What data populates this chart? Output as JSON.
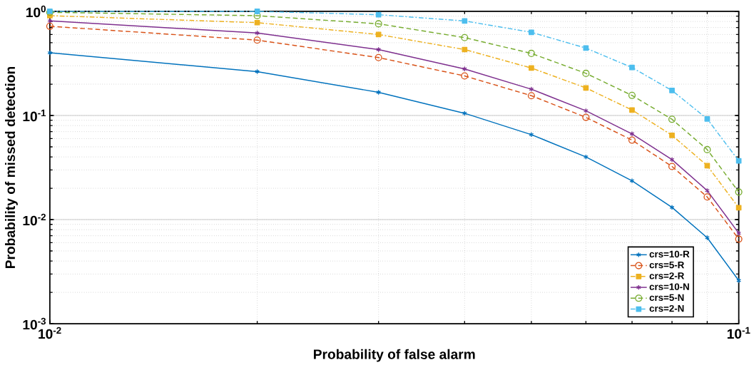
{
  "chart_data": {
    "type": "line",
    "xlabel": "Probability of false alarm",
    "ylabel": "Probability of missed detection",
    "log": "xy",
    "grid": true,
    "legend": "bottom right",
    "x": [
      0.01,
      0.02,
      0.03,
      0.04,
      0.05,
      0.06,
      0.07,
      0.08,
      0.09,
      0.1
    ],
    "xlim": [
      0.01,
      0.1
    ],
    "xticks": [
      {
        "value": 0.01,
        "label": "10$^{-2}$"
      },
      {
        "value": 0.1,
        "label": "10$^{-1}$"
      }
    ],
    "ylim": [
      0.001,
      1
    ],
    "yticks": [
      {
        "value": 0.001,
        "label": "10$^{-3}$"
      },
      {
        "value": 0.01,
        "label": "10$^{-2}$"
      },
      {
        "value": 0.1,
        "label": "10$^{-1}$"
      },
      {
        "value": 1,
        "label": "10$^{0}$"
      }
    ],
    "series": [
      {
        "name": "crs=10-R",
        "color": "#0072bd",
        "marker": "cross",
        "line_style": "solid",
        "values": [
          0.4,
          0.264,
          0.167,
          0.105,
          0.0655,
          0.04,
          0.0236,
          0.0131,
          0.0067,
          0.0026
        ]
      },
      {
        "name": "crs=5-R",
        "color": "#d95319",
        "marker": "circle",
        "line_style": "dashed",
        "values": [
          0.72,
          0.53,
          0.36,
          0.24,
          0.155,
          0.096,
          0.058,
          0.0324,
          0.0165,
          0.0065
        ]
      },
      {
        "name": "crs=2-R",
        "color": "#edb120",
        "marker": "square",
        "line_style": "dashdot",
        "values": [
          0.91,
          0.78,
          0.6,
          0.43,
          0.286,
          0.184,
          0.113,
          0.0645,
          0.033,
          0.013
        ]
      },
      {
        "name": "crs=10-N",
        "color": "#7e2f8e",
        "marker": "cross",
        "line_style": "solid",
        "values": [
          0.81,
          0.62,
          0.43,
          0.28,
          0.179,
          0.111,
          0.0666,
          0.0377,
          0.019,
          0.0074
        ]
      },
      {
        "name": "crs=5-N",
        "color": "#77ac30",
        "marker": "circle",
        "line_style": "dashed",
        "values": [
          0.98,
          0.91,
          0.76,
          0.56,
          0.395,
          0.254,
          0.156,
          0.092,
          0.047,
          0.0184
        ]
      },
      {
        "name": "crs=2-N",
        "color": "#4dbeee",
        "marker": "square",
        "line_style": "dashdot",
        "values": [
          1.0,
          1.0,
          0.93,
          0.81,
          0.63,
          0.444,
          0.289,
          0.174,
          0.0927,
          0.0367
        ]
      }
    ]
  }
}
